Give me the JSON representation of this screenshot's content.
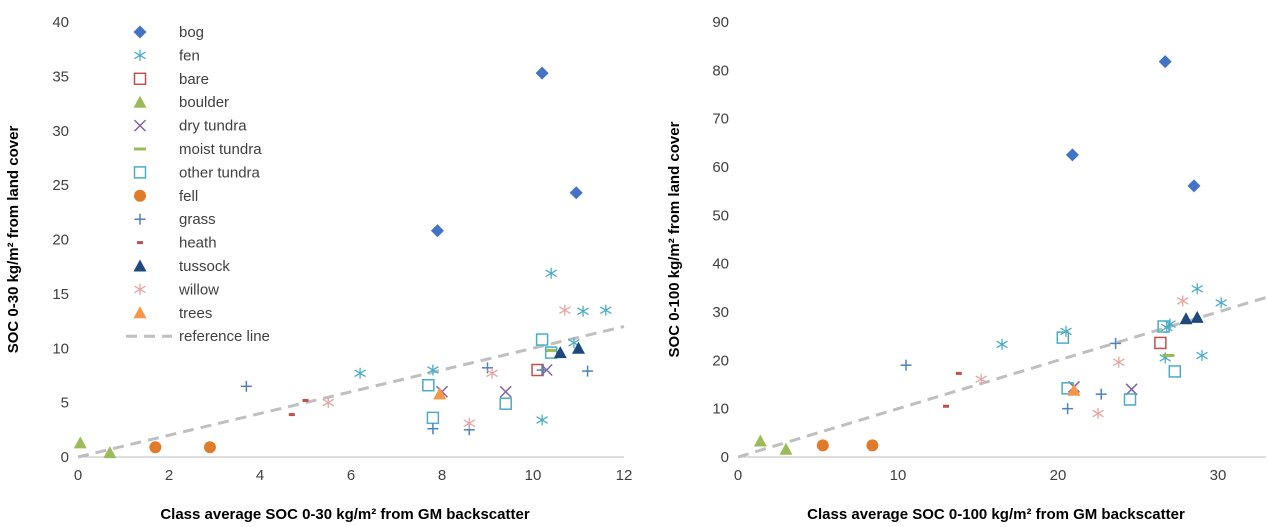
{
  "colors": {
    "bog": "#4472C4",
    "fen": "#4BACC6",
    "bare": "#C0504D",
    "boulder": "#9BBB59",
    "dry_tundra": "#8064A2",
    "moist_tundra": "#9BBB59",
    "other_tundra": "#4BACC6",
    "fell": "#E07B29",
    "grass": "#4F81BD",
    "heath": "#C0504D",
    "tussock": "#1F497D",
    "willow": "#E6A5A3",
    "trees": "#F79646",
    "reference": "#BFBFBF"
  },
  "chart_data": [
    {
      "type": "scatter",
      "title": "",
      "xlabel": "Class average SOC 0-30 kg/m² from GM backscatter",
      "ylabel": "SOC 0-30 kg/m² from land cover",
      "xlim": [
        0,
        12
      ],
      "ylim": [
        0,
        40
      ],
      "xticks": [
        "0",
        "2",
        "4",
        "6",
        "8",
        "10",
        "12"
      ],
      "yticks": [
        "0",
        "5",
        "10",
        "15",
        "20",
        "25",
        "30",
        "35",
        "40"
      ],
      "legend_position": "top-left",
      "series": [
        {
          "name": "bog",
          "marker": "diamond",
          "color_key": "bog",
          "x": [
            7.9,
            10.2,
            10.95
          ],
          "y": [
            20.8,
            35.3,
            24.3
          ]
        },
        {
          "name": "fen",
          "marker": "asterisk",
          "color_key": "fen",
          "x": [
            6.2,
            7.8,
            10.2,
            10.4,
            10.9,
            11.1,
            11.6
          ],
          "y": [
            7.7,
            8.0,
            3.4,
            16.9,
            10.5,
            13.4,
            13.5
          ]
        },
        {
          "name": "bare",
          "marker": "square-open",
          "color_key": "bare",
          "x": [
            10.1
          ],
          "y": [
            8.0
          ]
        },
        {
          "name": "boulder",
          "marker": "triangle",
          "color_key": "boulder",
          "x": [
            0.05,
            0.7
          ],
          "y": [
            1.3,
            0.4
          ]
        },
        {
          "name": "dry tundra",
          "marker": "x",
          "color_key": "dry_tundra",
          "x": [
            8.0,
            9.4,
            10.3
          ],
          "y": [
            6.0,
            6.0,
            8.0
          ]
        },
        {
          "name": "moist tundra",
          "marker": "dash",
          "color_key": "moist_tundra",
          "x": [
            10.4
          ],
          "y": [
            9.8
          ]
        },
        {
          "name": "other tundra",
          "marker": "square-open",
          "color_key": "other_tundra",
          "x": [
            7.7,
            7.8,
            9.4,
            10.2,
            10.4
          ],
          "y": [
            6.6,
            3.6,
            4.9,
            10.8,
            9.6
          ]
        },
        {
          "name": "fell",
          "marker": "circle",
          "color_key": "fell",
          "x": [
            1.7,
            2.9
          ],
          "y": [
            0.9,
            0.9
          ]
        },
        {
          "name": "grass",
          "marker": "plus",
          "color_key": "grass",
          "x": [
            3.7,
            7.8,
            8.6,
            9.0,
            10.2,
            11.2
          ],
          "y": [
            6.5,
            2.6,
            2.5,
            8.2,
            8.0,
            7.9
          ]
        },
        {
          "name": "heath",
          "marker": "small-dash",
          "color_key": "heath",
          "x": [
            4.7,
            5.0
          ],
          "y": [
            3.9,
            5.2
          ]
        },
        {
          "name": "tussock",
          "marker": "triangle",
          "color_key": "tussock",
          "x": [
            10.6,
            11.0
          ],
          "y": [
            9.6,
            10.0
          ]
        },
        {
          "name": "willow",
          "marker": "asterisk",
          "color_key": "willow",
          "x": [
            5.5,
            8.6,
            9.1,
            10.7
          ],
          "y": [
            5.0,
            3.1,
            7.7,
            13.5
          ]
        },
        {
          "name": "trees",
          "marker": "triangle",
          "color_key": "trees",
          "x": [
            7.95
          ],
          "y": [
            5.8
          ]
        }
      ],
      "reference_line": {
        "name": "reference line",
        "x": [
          0,
          12
        ],
        "y": [
          0,
          12
        ]
      }
    },
    {
      "type": "scatter",
      "title": "",
      "xlabel": "Class average SOC 0-100 kg/m² from GM backscatter",
      "ylabel": "SOC 0-100 kg/m² from land cover",
      "xlim": [
        0,
        33
      ],
      "ylim": [
        0,
        90
      ],
      "xticks": [
        "0",
        "10",
        "20",
        "30"
      ],
      "yticks": [
        "0",
        "10",
        "20",
        "30",
        "40",
        "50",
        "60",
        "70",
        "80",
        "90"
      ],
      "series": [
        {
          "name": "bog",
          "marker": "diamond",
          "color_key": "bog",
          "x": [
            20.9,
            26.7,
            28.5
          ],
          "y": [
            62.5,
            81.8,
            56.1
          ]
        },
        {
          "name": "fen",
          "marker": "asterisk",
          "color_key": "fen",
          "x": [
            16.5,
            20.5,
            26.7,
            26.8,
            27.0,
            28.7,
            29.0,
            30.2
          ],
          "y": [
            23.3,
            26.0,
            20.5,
            26.8,
            27.5,
            34.8,
            21.0,
            31.9
          ]
        },
        {
          "name": "bare",
          "marker": "square-open",
          "color_key": "bare",
          "x": [
            26.4
          ],
          "y": [
            23.6
          ]
        },
        {
          "name": "boulder",
          "marker": "triangle",
          "color_key": "boulder",
          "x": [
            1.4,
            3.0
          ],
          "y": [
            3.3,
            1.6
          ]
        },
        {
          "name": "dry tundra",
          "marker": "x",
          "color_key": "dry_tundra",
          "x": [
            21.0,
            24.6
          ],
          "y": [
            14.5,
            14.0
          ]
        },
        {
          "name": "moist tundra",
          "marker": "dash",
          "color_key": "moist_tundra",
          "x": [
            26.9
          ],
          "y": [
            21.0
          ]
        },
        {
          "name": "other tundra",
          "marker": "square-open",
          "color_key": "other_tundra",
          "x": [
            20.3,
            20.6,
            24.5,
            26.6,
            27.3
          ],
          "y": [
            24.7,
            14.2,
            11.9,
            27.0,
            17.7
          ]
        },
        {
          "name": "fell",
          "marker": "circle",
          "color_key": "fell",
          "x": [
            5.3,
            8.4
          ],
          "y": [
            2.4,
            2.4
          ]
        },
        {
          "name": "grass",
          "marker": "plus",
          "color_key": "grass",
          "x": [
            10.5,
            20.6,
            22.7,
            23.6
          ],
          "y": [
            19.0,
            10.0,
            13.0,
            23.5
          ]
        },
        {
          "name": "heath",
          "marker": "small-dash",
          "color_key": "heath",
          "x": [
            13.0,
            13.8
          ],
          "y": [
            10.5,
            17.3
          ]
        },
        {
          "name": "tussock",
          "marker": "triangle",
          "color_key": "tussock",
          "x": [
            28.0,
            28.7
          ],
          "y": [
            28.6,
            28.9
          ]
        },
        {
          "name": "willow",
          "marker": "asterisk",
          "color_key": "willow",
          "x": [
            15.2,
            22.5,
            23.8,
            27.8
          ],
          "y": [
            16.1,
            9.0,
            19.6,
            32.3
          ]
        },
        {
          "name": "trees",
          "marker": "triangle",
          "color_key": "trees",
          "x": [
            21.0
          ],
          "y": [
            13.8
          ]
        }
      ],
      "reference_line": {
        "name": "reference line",
        "x": [
          0,
          33
        ],
        "y": [
          0,
          33
        ]
      }
    }
  ]
}
